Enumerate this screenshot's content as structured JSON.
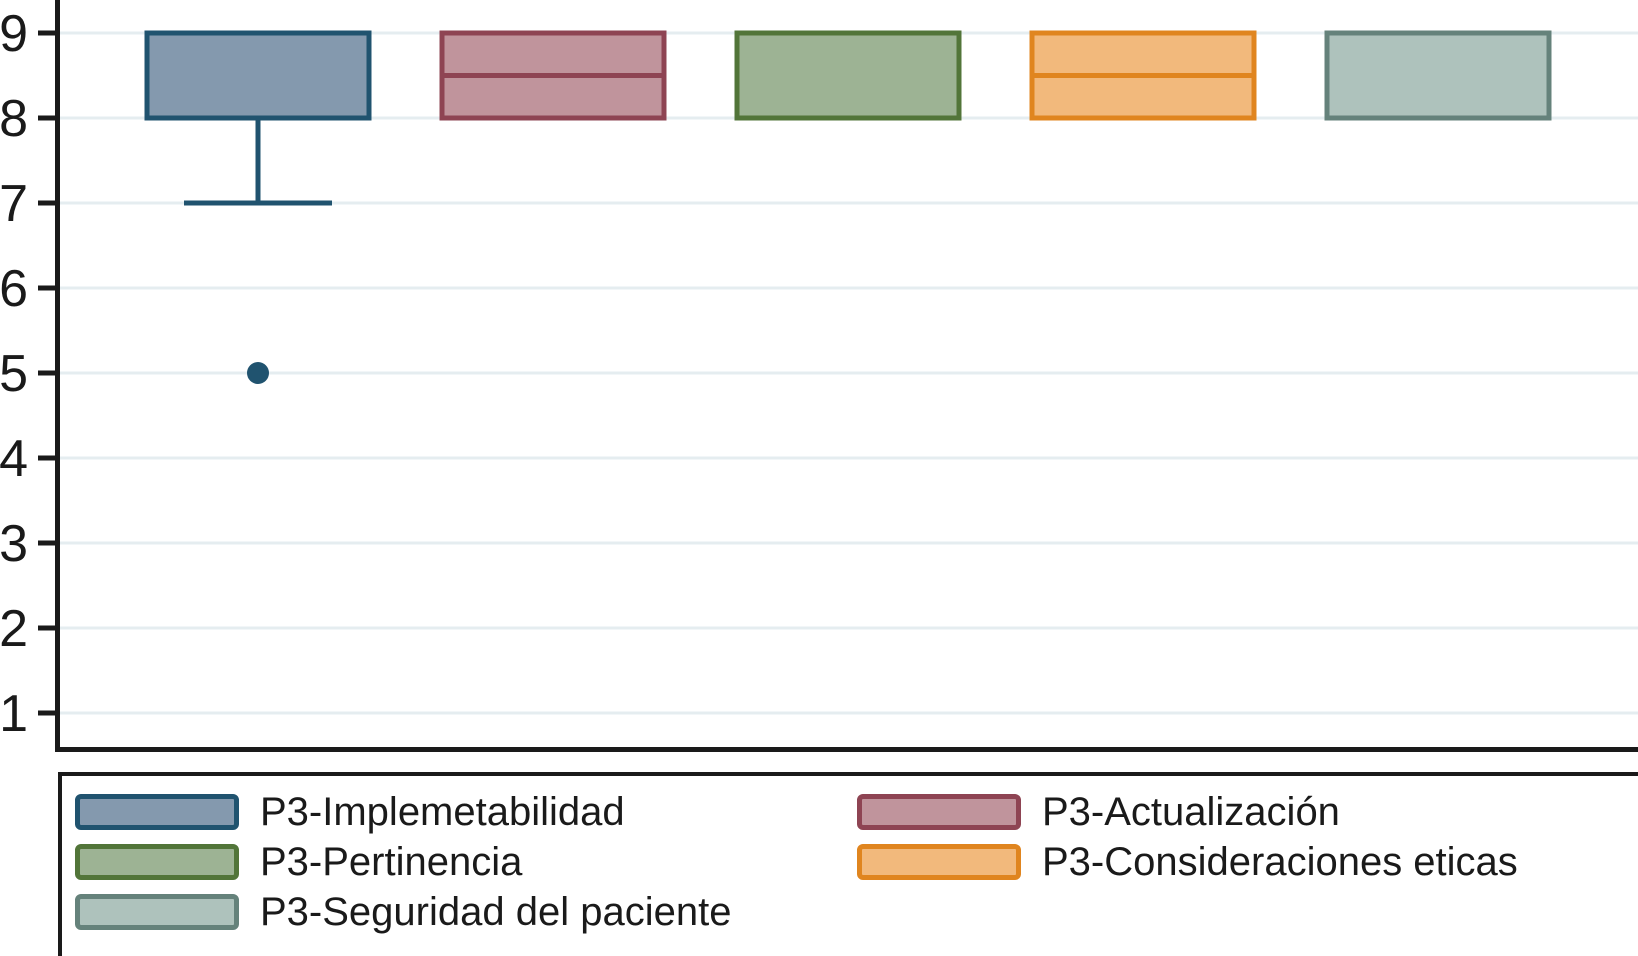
{
  "figure": {
    "background": "#ffffff",
    "axis_color": "#1a1a1a",
    "gridline_color": "#e5edf0",
    "text_color": "#1a1a1a"
  },
  "chart_data": {
    "type": "box",
    "title": "",
    "xlabel": "",
    "ylabel": "",
    "y_ticks": [
      1,
      2,
      3,
      4,
      5,
      6,
      7,
      8,
      9
    ],
    "ylim": [
      0.7,
      9.4
    ],
    "grid": true,
    "legend_position": "bottom",
    "series": [
      {
        "name": "P3-Implemetabilidad",
        "q1": 8,
        "median": null,
        "q3": 9,
        "whisker_low": 7,
        "whisker_high": null,
        "outliers": [
          5
        ],
        "fill": "#8499ae",
        "stroke": "#20536f"
      },
      {
        "name": "P3-Actualización",
        "q1": 8,
        "median": 8.5,
        "q3": 9,
        "whisker_low": null,
        "whisker_high": null,
        "outliers": [],
        "fill": "#c0949c",
        "stroke": "#8e4453"
      },
      {
        "name": "P3-Pertinencia",
        "q1": 8,
        "median": null,
        "q3": 9,
        "whisker_low": null,
        "whisker_high": null,
        "outliers": [],
        "fill": "#9db394",
        "stroke": "#527539"
      },
      {
        "name": "P3-Consideraciones eticas",
        "q1": 8,
        "median": 8.5,
        "q3": 9,
        "whisker_low": null,
        "whisker_high": null,
        "outliers": [],
        "fill": "#f2b97c",
        "stroke": "#e0851f"
      },
      {
        "name": "P3-Seguridad del paciente",
        "q1": 8,
        "median": null,
        "q3": 9,
        "whisker_low": null,
        "whisker_high": null,
        "outliers": [],
        "fill": "#aec2bc",
        "stroke": "#65827b"
      }
    ]
  },
  "legend": {
    "columns": [
      [
        0,
        2,
        4
      ],
      [
        1,
        3
      ]
    ]
  }
}
